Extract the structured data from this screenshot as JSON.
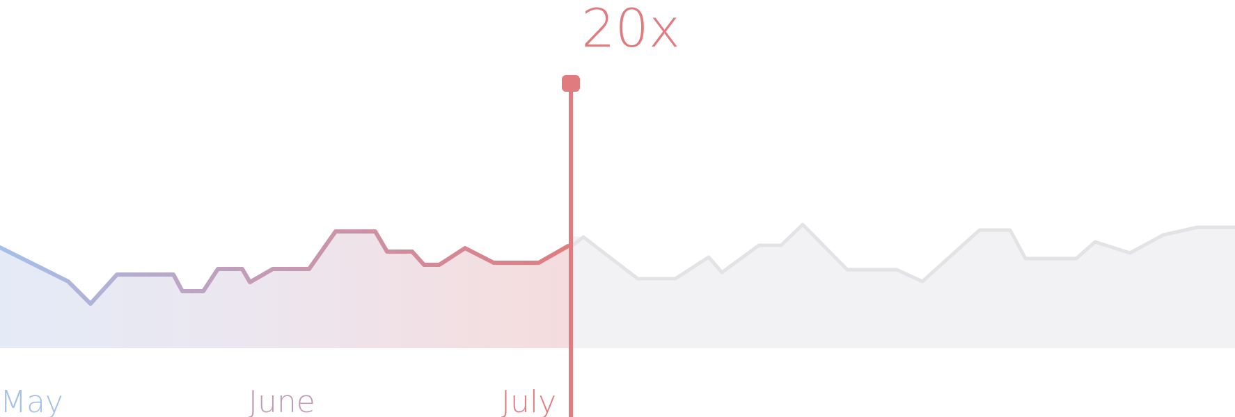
{
  "multiplier": {
    "label": "20x"
  },
  "colors": {
    "start": "#a4c0ea",
    "mid": "#c39bb6",
    "end": "#e07c7f",
    "future_line": "#e3e3e6",
    "future_fill": "#f2f2f5",
    "label_may": "#a4c0ea",
    "label_june": "#bf9bb3",
    "label_july": "#e07c7f"
  },
  "chart_data": {
    "type": "area",
    "x_axis": {
      "type": "time",
      "start": "May 1",
      "end": "Aug 10",
      "tick_labels": [
        "May",
        "June",
        "July"
      ],
      "tick_dates": [
        "May 1",
        "Jun 1",
        "Jul 1"
      ]
    },
    "grid": false,
    "legend": "none",
    "marker": {
      "date": "Jul 14",
      "label": "20x"
    },
    "series": [
      {
        "segment": "past",
        "points": [
          {
            "date": "May 1",
            "value": 33
          },
          {
            "date": "May 3",
            "value": 26
          },
          {
            "date": "May 7",
            "value": 11
          },
          {
            "date": "May 9",
            "value": -6
          },
          {
            "date": "May 12",
            "value": 12
          },
          {
            "date": "May 16",
            "value": 12
          },
          {
            "date": "May 17",
            "value": 0
          },
          {
            "date": "May 19",
            "value": 0
          },
          {
            "date": "May 21",
            "value": 18
          },
          {
            "date": "May 23",
            "value": 18
          },
          {
            "date": "May 23.5",
            "value": 6
          },
          {
            "date": "May 26",
            "value": 14
          },
          {
            "date": "May 29",
            "value": 14
          },
          {
            "date": "Jun 1",
            "value": 37
          },
          {
            "date": "Jun 4",
            "value": 37
          },
          {
            "date": "Jun 5",
            "value": 20
          },
          {
            "date": "Jun 8",
            "value": 20
          },
          {
            "date": "Jun 9",
            "value": 9
          },
          {
            "date": "Jun 10",
            "value": 9
          },
          {
            "date": "Jun 12",
            "value": 23
          },
          {
            "date": "Jun 14",
            "value": 9
          },
          {
            "date": "Jun 18",
            "value": 9
          },
          {
            "date": "Jun 21",
            "value": 33
          },
          {
            "date": "Jun 22",
            "value": 45
          },
          {
            "date": "Jun 24",
            "value": 45
          },
          {
            "date": "Jun 25",
            "value": 38
          },
          {
            "date": "Jun 28",
            "value": 24
          },
          {
            "date": "Jun 30",
            "value": 23
          },
          {
            "date": "Jul 1",
            "value": 34
          },
          {
            "date": "Jul 3",
            "value": 40
          },
          {
            "date": "Jul 7",
            "value": 26
          },
          {
            "date": "Jul 9",
            "value": 7
          },
          {
            "date": "Jul 10",
            "value": 19
          },
          {
            "date": "Jul 14",
            "value": 43
          }
        ]
      },
      {
        "segment": "future",
        "points": [
          {
            "date": "Jul 14",
            "value": 43
          },
          {
            "date": "Jul 17",
            "value": 23
          },
          {
            "date": "Jul 21",
            "value": 23
          },
          {
            "date": "Jul 24",
            "value": 39
          },
          {
            "date": "Jul 25",
            "value": 29
          },
          {
            "date": "Jul 28",
            "value": 45
          },
          {
            "date": "Jul 30",
            "value": 45
          },
          {
            "date": "Aug 1",
            "value": 62
          },
          {
            "date": "Aug 5",
            "value": 36
          },
          {
            "date": "Aug 9",
            "value": 36
          },
          {
            "date": "Aug 11",
            "value": 26
          },
          {
            "date": "Aug 16",
            "value": 58
          },
          {
            "date": "Aug 19",
            "value": 58
          },
          {
            "date": "Aug 21",
            "value": 36
          },
          {
            "date": "Aug 25",
            "value": 36
          },
          {
            "date": "Aug 27",
            "value": 46
          },
          {
            "date": "Aug 30",
            "value": 40
          },
          {
            "date": "Sep 2",
            "value": 55
          },
          {
            "date": "Sep 5",
            "value": 60
          },
          {
            "date": "Sep 8",
            "value": 62
          },
          {
            "date": "Sep 12",
            "value": 62
          }
        ]
      }
    ]
  }
}
